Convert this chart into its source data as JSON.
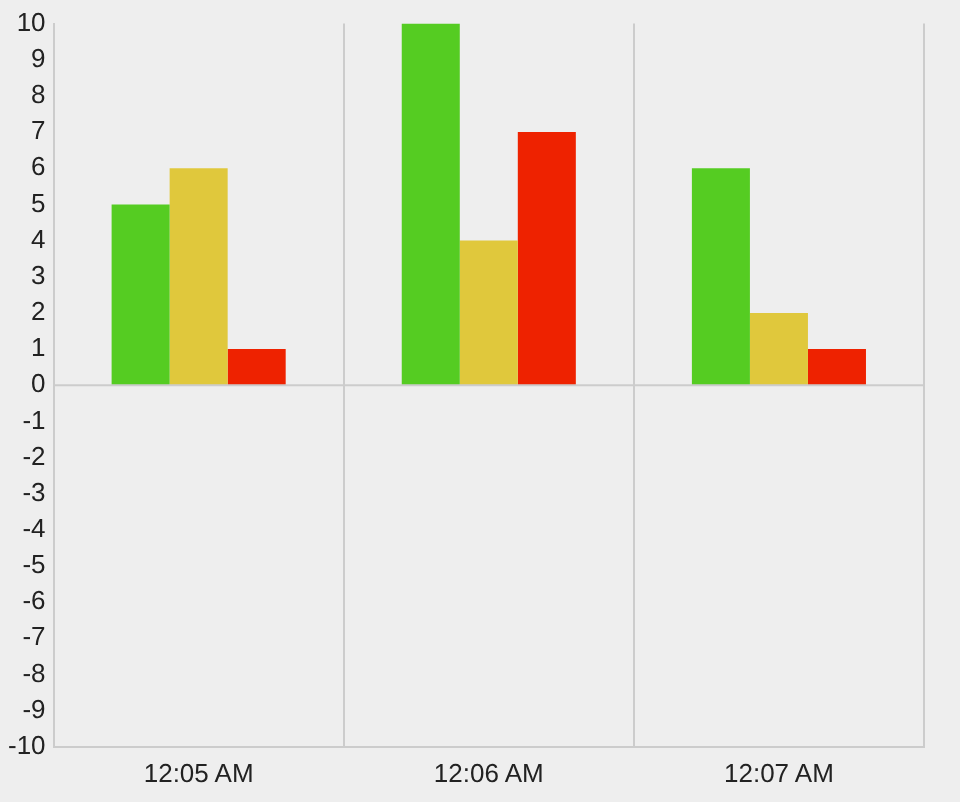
{
  "chart_data": {
    "type": "bar",
    "categories": [
      "12:05 AM",
      "12:06 AM",
      "12:07 AM"
    ],
    "series": [
      {
        "color": "#55cc22",
        "values": [
          5,
          10,
          6
        ]
      },
      {
        "color": "#e0c83c",
        "values": [
          6,
          4,
          2
        ]
      },
      {
        "color": "#ee2200",
        "values": [
          1,
          7,
          1
        ]
      }
    ],
    "ylim": [
      -10,
      10
    ],
    "yticks": [
      -10,
      -9,
      -8,
      -7,
      -6,
      -5,
      -4,
      -3,
      -2,
      -1,
      0,
      1,
      2,
      3,
      4,
      5,
      6,
      7,
      8,
      9,
      10
    ],
    "grid": "x",
    "legend": false,
    "ref_lines": [
      {
        "axis": "y",
        "value": 0,
        "color": "#cccccc"
      }
    ]
  }
}
